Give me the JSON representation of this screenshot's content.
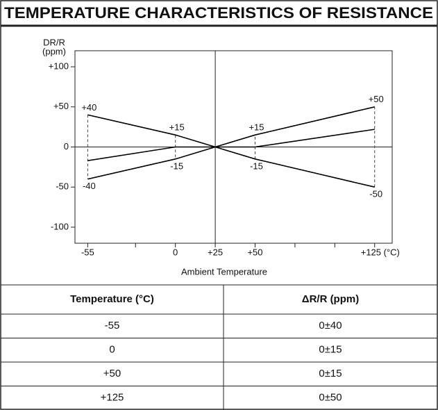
{
  "header": {
    "title": "TEMPERATURE CHARACTERISTICS OF RESISTANCE"
  },
  "chart_data": {
    "type": "line",
    "ylabel": [
      "DR/R",
      "(ppm)"
    ],
    "xlabel": "Ambient Temperature",
    "x": [
      -55,
      0,
      25,
      50,
      125
    ],
    "series": [
      {
        "color": "#000000",
        "values": [
          40,
          15,
          0,
          -15,
          -50
        ],
        "value_labels": [
          "+40",
          "+15",
          null,
          "-15",
          "-50"
        ]
      },
      {
        "color": "#000000",
        "values": [
          -40,
          -15,
          0,
          15,
          50
        ],
        "value_labels": [
          "-40",
          "-15",
          null,
          "+15",
          "+50"
        ]
      },
      {
        "color": "#000000",
        "values": [
          -17,
          0,
          0,
          0,
          22
        ]
      }
    ],
    "xlim": [
      -63,
      136
    ],
    "ylim": [
      -120,
      120
    ],
    "xticks": [
      -55,
      0,
      {
        "value": 25,
        "label": "+25"
      },
      {
        "value": 50,
        "label": "+50"
      },
      {
        "value": 125,
        "label": "+125 (°C)"
      }
    ],
    "xminorticks": [
      -25,
      75,
      100
    ],
    "yticks": [
      {
        "value": 100,
        "label": "+100"
      },
      {
        "value": 50,
        "label": "+50"
      },
      0,
      -50,
      -100
    ]
  },
  "table": {
    "columns": [
      "Temperature (°C)",
      "ΔR/R (ppm)"
    ],
    "rows": [
      [
        "-55",
        "0±40"
      ],
      [
        "0",
        "0±15"
      ],
      [
        "+50",
        "0±15"
      ],
      [
        "+125",
        "0±50"
      ]
    ]
  }
}
